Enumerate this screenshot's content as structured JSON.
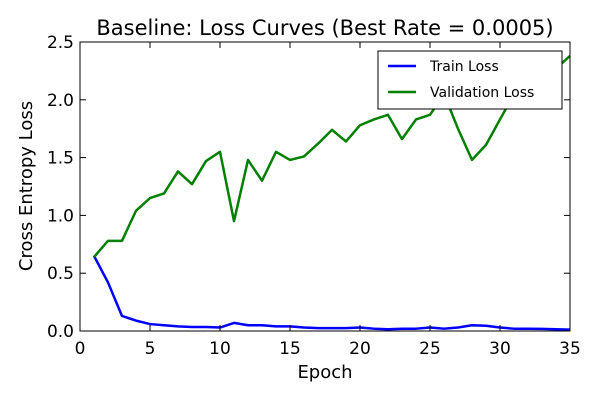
{
  "chart_data": {
    "type": "line",
    "title": "Baseline: Loss Curves (Best Rate = 0.0005)",
    "xlabel": "Epoch",
    "ylabel": "Cross Entropy Loss",
    "xlim": [
      0,
      35
    ],
    "ylim": [
      0.0,
      2.5
    ],
    "xticks": [
      0,
      5,
      10,
      15,
      20,
      25,
      30,
      35
    ],
    "yticks": [
      0.0,
      0.5,
      1.0,
      1.5,
      2.0,
      2.5
    ],
    "xtick_labels": [
      "0",
      "5",
      "10",
      "15",
      "20",
      "25",
      "30",
      "35"
    ],
    "ytick_labels": [
      "0.0",
      "0.5",
      "1.0",
      "1.5",
      "2.0",
      "2.5"
    ],
    "grid": false,
    "legend_position": "top-right",
    "x": [
      1,
      2,
      3,
      4,
      5,
      6,
      7,
      8,
      9,
      10,
      11,
      12,
      13,
      14,
      15,
      16,
      17,
      18,
      19,
      20,
      21,
      22,
      23,
      24,
      25,
      26,
      27,
      28,
      29,
      30,
      31,
      32,
      33,
      34,
      35
    ],
    "series": [
      {
        "name": "Train Loss",
        "color": "#0000ff",
        "values": [
          0.65,
          0.42,
          0.13,
          0.09,
          0.06,
          0.05,
          0.04,
          0.035,
          0.035,
          0.03,
          0.07,
          0.05,
          0.05,
          0.04,
          0.04,
          0.03,
          0.025,
          0.025,
          0.025,
          0.03,
          0.02,
          0.015,
          0.02,
          0.02,
          0.03,
          0.02,
          0.03,
          0.05,
          0.045,
          0.03,
          0.02,
          0.02,
          0.018,
          0.015,
          0.012
        ]
      },
      {
        "name": "Validation Loss",
        "color": "#008000",
        "values": [
          0.64,
          0.78,
          0.78,
          1.04,
          1.15,
          1.19,
          1.38,
          1.27,
          1.47,
          1.55,
          0.95,
          1.48,
          1.3,
          1.55,
          1.48,
          1.51,
          1.62,
          1.74,
          1.64,
          1.78,
          1.83,
          1.87,
          1.66,
          1.83,
          1.87,
          2.05,
          1.75,
          1.48,
          1.61,
          1.83,
          2.05,
          2.1,
          2.18,
          2.27,
          2.38
        ]
      }
    ]
  }
}
